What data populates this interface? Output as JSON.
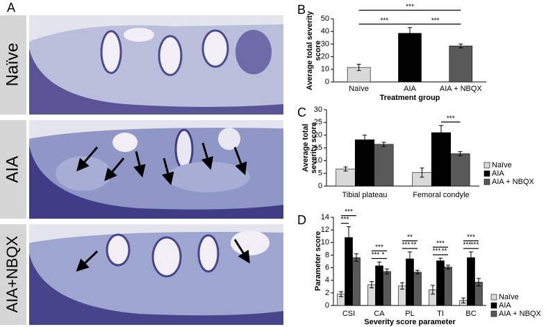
{
  "panel_a": {
    "label": "A",
    "rows": [
      "Naïve",
      "AIA",
      "AIA+NBQX"
    ]
  },
  "chart_data": [
    {
      "type": "bar",
      "panel": "B",
      "ylabel": [
        "Average total severity",
        "score"
      ],
      "xlabel": "Treatment group",
      "categories": [
        "Naïve",
        "AIA",
        "AIA + NBQX"
      ],
      "values": [
        11.5,
        38.5,
        28.5
      ],
      "errors": [
        2.5,
        4.5,
        1.5
      ],
      "colors": [
        "#d9d9d9",
        "#000000",
        "#595959"
      ],
      "ylim": [
        0,
        50
      ],
      "yticks": [
        0,
        10,
        20,
        30,
        40,
        50
      ],
      "grid": false,
      "significance": [
        {
          "label": "***",
          "pair": [
            0,
            1
          ]
        },
        {
          "label": "***",
          "pair": [
            1,
            2
          ]
        },
        {
          "label": "***",
          "pair": [
            0,
            2
          ]
        }
      ]
    },
    {
      "type": "grouped_bar",
      "panel": "C",
      "ylabel": [
        "Average total",
        "severity score"
      ],
      "categories": [
        "Tibial plateau",
        "Femoral condyle"
      ],
      "series": [
        {
          "name": "Naïve",
          "color": "#d9d9d9",
          "values": [
            6.7,
            5.3
          ],
          "errors": [
            0.8,
            1.8
          ]
        },
        {
          "name": "AIA",
          "color": "#000000",
          "values": [
            18.2,
            21
          ],
          "errors": [
            1.8,
            2.8
          ]
        },
        {
          "name": "AIA + NBQX",
          "color": "#595959",
          "values": [
            16.4,
            12.7
          ],
          "errors": [
            0.8,
            0.8
          ]
        }
      ],
      "ylim": [
        0,
        30
      ],
      "yticks": [
        0,
        5,
        10,
        15,
        20,
        25,
        30
      ],
      "grid": false,
      "legend": "right",
      "significance": [
        {
          "category": 1,
          "label": "***",
          "pair": [
            1,
            2
          ]
        }
      ]
    },
    {
      "type": "grouped_bar",
      "panel": "D",
      "ylabel": [
        "Parameter score"
      ],
      "xlabel": "Severity score parameter",
      "categories": [
        "CSI",
        "CA",
        "PL",
        "TI",
        "BC"
      ],
      "series": [
        {
          "name": "Naïve",
          "color": "#d9d9d9",
          "values": [
            1.8,
            3.3,
            3.1,
            2.5,
            0.8
          ],
          "errors": [
            0.4,
            0.5,
            0.5,
            0.7,
            0.4
          ]
        },
        {
          "name": "AIA",
          "color": "#000000",
          "values": [
            10.8,
            6.3,
            7.4,
            7.1,
            7.6
          ],
          "errors": [
            1.7,
            0.6,
            1.1,
            0.4,
            0.9
          ]
        },
        {
          "name": "AIA + NBQX",
          "color": "#595959",
          "values": [
            7.6,
            5.4,
            5.3,
            6.1,
            3.7
          ],
          "errors": [
            0.6,
            0.4,
            0.3,
            0.3,
            0.6
          ]
        }
      ],
      "ylim": [
        0,
        14
      ],
      "yticks": [
        0,
        2,
        4,
        6,
        8,
        10,
        12,
        14
      ],
      "grid": false,
      "legend": "right",
      "significance": [
        {
          "category": 0,
          "label": "***",
          "pair": [
            0,
            1
          ]
        },
        {
          "category": 0,
          "label": "***",
          "pair": [
            0,
            2
          ]
        },
        {
          "category": 1,
          "label": "***",
          "pair": [
            0,
            1
          ]
        },
        {
          "category": 1,
          "label": "*",
          "pair": [
            1,
            2
          ]
        },
        {
          "category": 1,
          "label": "***",
          "pair": [
            0,
            2
          ]
        },
        {
          "category": 2,
          "label": "***",
          "pair": [
            0,
            1
          ]
        },
        {
          "category": 2,
          "label": "**",
          "pair": [
            1,
            2
          ]
        },
        {
          "category": 2,
          "label": "**",
          "pair": [
            0,
            2
          ]
        },
        {
          "category": 3,
          "label": "***",
          "pair": [
            0,
            1
          ]
        },
        {
          "category": 3,
          "label": "**",
          "pair": [
            1,
            2
          ]
        },
        {
          "category": 3,
          "label": "***",
          "pair": [
            0,
            2
          ]
        },
        {
          "category": 4,
          "label": "***",
          "pair": [
            0,
            1
          ]
        },
        {
          "category": 4,
          "label": "***",
          "pair": [
            1,
            2
          ]
        },
        {
          "category": 4,
          "label": "***",
          "pair": [
            0,
            2
          ]
        }
      ]
    }
  ]
}
